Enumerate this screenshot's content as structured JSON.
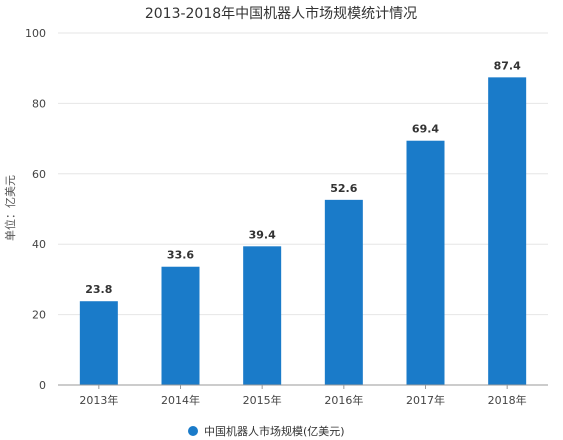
{
  "chart_data": {
    "type": "bar",
    "title": "2013-2018年中国机器人市场规模统计情况",
    "ylabel": "单位：亿美元",
    "xlabel": "",
    "categories": [
      "2013年",
      "2014年",
      "2015年",
      "2016年",
      "2017年",
      "2018年"
    ],
    "series": [
      {
        "name": "中国机器人市场规模(亿美元)",
        "values": [
          23.8,
          33.6,
          39.4,
          52.6,
          69.4,
          87.4
        ]
      }
    ],
    "data_labels": [
      "23.8",
      "33.6",
      "39.4",
      "52.6",
      "69.4",
      "87.4"
    ],
    "ylim": [
      0,
      100
    ],
    "yticks": [
      0,
      20,
      40,
      60,
      80,
      100
    ],
    "ytick_labels": [
      "0",
      "20",
      "40",
      "60",
      "80",
      "100"
    ],
    "grid": true,
    "legend_position": "bottom-center",
    "colors": {
      "bar": "#1a7bc9",
      "grid": "#e6e6e6",
      "axis": "#999999"
    }
  }
}
